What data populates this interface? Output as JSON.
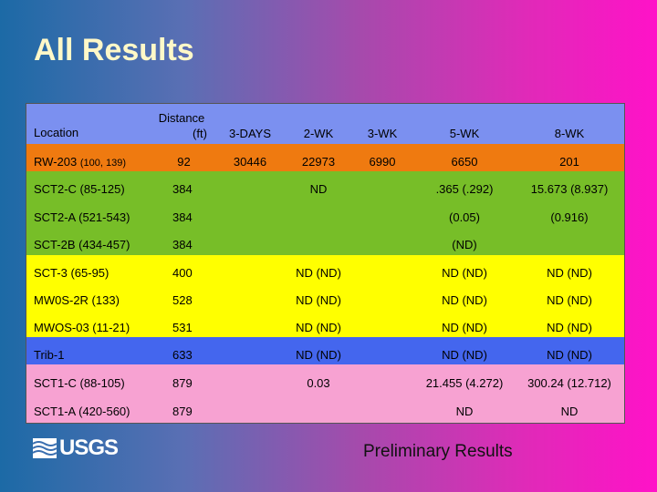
{
  "title": "All Results",
  "footer": {
    "logo_text": "USGS",
    "note": "Preliminary Results"
  },
  "headers": {
    "location": "Location",
    "distance_1": "Distance",
    "distance_2": "(ft)",
    "d3": "3-DAYS",
    "w2": "2-WK",
    "w3": "3-WK",
    "w5": "5-WK",
    "w8": "8-WK"
  },
  "rows": [
    {
      "loc_main": "RW-203",
      "loc_sub": "(100, 139)",
      "dist": "92",
      "d3": "30446",
      "w2": "22973",
      "w3": "6990",
      "w5": "6650",
      "w8": "201"
    },
    {
      "loc": "SCT2-C (85-125)",
      "dist": "384",
      "w2": "ND",
      "w5": ".365 (.292)",
      "w8": "15.673 (8.937)"
    },
    {
      "loc": "SCT2-A (521-543)",
      "dist": "384",
      "w5": "(0.05)",
      "w8": "(0.916)"
    },
    {
      "loc": "SCT-2B (434-457)",
      "dist": "384",
      "w5": "(ND)"
    },
    {
      "loc": "SCT-3 (65-95)",
      "dist": "400",
      "w2": "ND (ND)",
      "w5": "ND (ND)",
      "w8": "ND (ND)"
    },
    {
      "loc": "MW0S-2R (133)",
      "dist": "528",
      "w2": "ND (ND)",
      "w5": "ND (ND)",
      "w8": "ND (ND)"
    },
    {
      "loc": "MWOS-03 (11-21)",
      "dist": "531",
      "w2": "ND (ND)",
      "w5": "ND (ND)",
      "w8": "ND (ND)"
    },
    {
      "loc": "Trib-1",
      "dist": "633",
      "w2": "ND (ND)",
      "w5": "ND (ND)",
      "w8": "ND (ND)"
    },
    {
      "loc": "SCT1-C (88-105)",
      "dist": "879",
      "w2": "0.03",
      "w5": "21.455 (4.272)",
      "w8": "300.24 (12.712)"
    },
    {
      "loc": "SCT1-A (420-560)",
      "dist": "879",
      "w5": "ND",
      "w8": "ND"
    }
  ]
}
